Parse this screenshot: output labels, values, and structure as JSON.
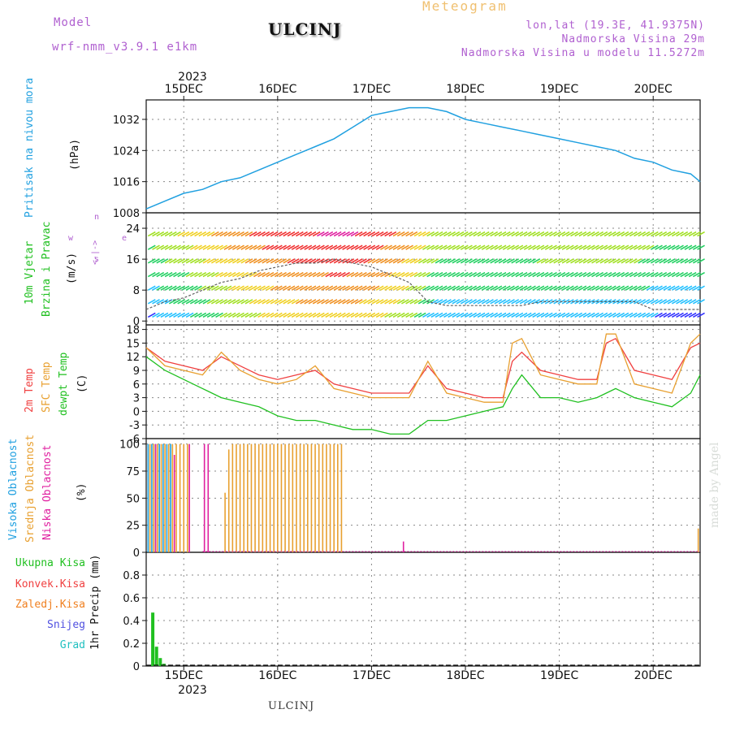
{
  "header": {
    "model_label": "Model",
    "model_name": "wrf-nmm_v3.9.1  e1km",
    "station": "ULCINJ",
    "chart_title": "Meteogram",
    "lonlat": "lon,lat (19.3E, 41.9375N)",
    "elevation": "Nadmorska Visina 29m",
    "model_elevation": "Nadmorska Visina u modelu 11.5272m"
  },
  "footer": {
    "station": "ULCINJ",
    "watermark": "made by Angel"
  },
  "time_axis": {
    "year": "2023",
    "days": [
      "15DEC",
      "16DEC",
      "17DEC",
      "18DEC",
      "19DEC",
      "20DEC"
    ],
    "day_positions": [
      15,
      16,
      17,
      18,
      19,
      20
    ],
    "range": [
      14.6,
      20.5
    ]
  },
  "colors": {
    "pressure": "#20a0e0",
    "temp2m": "#f04040",
    "sfc_temp": "#e8a030",
    "dewpt": "#20c020",
    "high_cloud": "#20a0e0",
    "mid_cloud": "#e8a030",
    "low_cloud": "#e020a0",
    "total_precip": "#20c020",
    "conv_precip": "#f04040",
    "frz_precip": "#f08020",
    "snow": "#5050e0",
    "hail": "#20c0c0",
    "wind_speed_line": "#606060"
  },
  "chart_data": [
    {
      "type": "line",
      "name": "pressure",
      "ylabel_main": "Pritisak na nivou mora",
      "ylabel_unit": "(hPa)",
      "ylim": [
        1008,
        1037
      ],
      "yticks": [
        1008,
        1016,
        1024,
        1032
      ],
      "grid": true,
      "x": [
        14.6,
        14.8,
        15.0,
        15.2,
        15.4,
        15.6,
        15.8,
        16.0,
        16.2,
        16.4,
        16.6,
        16.8,
        17.0,
        17.2,
        17.4,
        17.6,
        17.8,
        18.0,
        18.2,
        18.4,
        18.6,
        18.8,
        19.0,
        19.2,
        19.4,
        19.6,
        19.8,
        20.0,
        20.2,
        20.4,
        20.5
      ],
      "y": [
        1009,
        1011,
        1013,
        1014,
        1016,
        1017,
        1019,
        1021,
        1023,
        1025,
        1027,
        1030,
        1033,
        1034,
        1035,
        1035,
        1034,
        1032,
        1031,
        1030,
        1029,
        1028,
        1027,
        1026,
        1025,
        1024,
        1022,
        1021,
        1019,
        1018,
        1016
      ]
    },
    {
      "type": "line",
      "name": "wind",
      "ylabel_main": "10m Vjetar",
      "ylabel_sub": "Brzina i Pravac",
      "ylabel_unit": "(m/s)",
      "compass": {
        "w": "w",
        "e": "e",
        "s": "s",
        "n": "n",
        "arrow": "<-|->"
      },
      "ylim": [
        -1,
        28
      ],
      "yticks": [
        0,
        8,
        16,
        24
      ],
      "grid": true,
      "x": [
        14.6,
        14.8,
        15.0,
        15.2,
        15.4,
        15.6,
        15.8,
        16.0,
        16.2,
        16.4,
        16.6,
        16.8,
        17.0,
        17.2,
        17.4,
        17.6,
        17.8,
        18.0,
        18.2,
        18.4,
        18.6,
        18.8,
        19.0,
        19.2,
        19.4,
        19.6,
        19.8,
        20.0,
        20.2,
        20.4,
        20.5
      ],
      "y": [
        3,
        5,
        6,
        8,
        10,
        11,
        13,
        14,
        15,
        15,
        16,
        15,
        14,
        12,
        10,
        5,
        4,
        4,
        4,
        4,
        4,
        5,
        5,
        5,
        5,
        5,
        5,
        3,
        3,
        3,
        3
      ]
    },
    {
      "type": "line",
      "name": "temperature",
      "ylabel_main": "2m Temp",
      "ylabel_sub": "SFC Temp",
      "ylabel_sub2": "dewpt Temp",
      "ylabel_unit": "(C)",
      "ylim": [
        -6,
        19
      ],
      "yticks": [
        -6,
        -3,
        0,
        3,
        6,
        9,
        12,
        15,
        18
      ],
      "grid": true,
      "x": [
        14.6,
        14.8,
        15.0,
        15.2,
        15.4,
        15.6,
        15.8,
        16.0,
        16.2,
        16.4,
        16.6,
        16.8,
        17.0,
        17.2,
        17.4,
        17.6,
        17.8,
        18.0,
        18.2,
        18.4,
        18.5,
        18.6,
        18.8,
        19.0,
        19.2,
        19.4,
        19.5,
        19.6,
        19.8,
        20.0,
        20.2,
        20.4,
        20.5
      ],
      "series": [
        {
          "name": "2m Temp",
          "values": [
            14,
            11,
            10,
            9,
            12,
            10,
            8,
            7,
            8,
            9,
            6,
            5,
            4,
            4,
            4,
            10,
            5,
            4,
            3,
            3,
            11,
            13,
            9,
            8,
            7,
            7,
            15,
            16,
            9,
            8,
            7,
            14,
            15
          ]
        },
        {
          "name": "SFC Temp",
          "values": [
            14,
            10,
            9,
            8,
            13,
            9,
            7,
            6,
            7,
            10,
            5,
            4,
            3,
            3,
            3,
            11,
            4,
            3,
            2,
            2,
            15,
            16,
            8,
            7,
            6,
            6,
            17,
            17,
            6,
            5,
            4,
            15,
            17
          ]
        },
        {
          "name": "dewpt Temp",
          "values": [
            12,
            9,
            7,
            5,
            3,
            2,
            1,
            -1,
            -2,
            -2,
            -3,
            -4,
            -4,
            -5,
            -5,
            -2,
            -2,
            -1,
            0,
            1,
            5,
            8,
            3,
            3,
            2,
            3,
            4,
            5,
            3,
            2,
            1,
            4,
            8
          ]
        }
      ]
    },
    {
      "type": "bar",
      "name": "clouds",
      "ylabel_main": "Visoka Oblacnost",
      "ylabel_sub": "Srednja Oblacnost",
      "ylabel_sub2": "Niska Oblacnost",
      "ylabel_unit": "(%)",
      "ylim": [
        0,
        105
      ],
      "yticks": [
        0,
        25,
        50,
        75,
        100
      ],
      "grid": true,
      "series": [
        {
          "name": "Visoka Oblacnost",
          "x": [
            14.62,
            14.66,
            14.7,
            14.74,
            14.78,
            14.82,
            14.86
          ],
          "values": [
            100,
            100,
            100,
            100,
            100,
            100,
            100
          ]
        },
        {
          "name": "Srednja Oblacnost",
          "x": [
            14.64,
            14.68,
            14.72,
            14.76,
            14.8,
            14.84,
            14.88,
            14.92,
            14.96,
            15.0,
            15.04,
            15.44,
            15.48,
            15.52,
            15.56,
            15.6,
            15.64,
            15.68,
            15.72,
            15.76,
            15.8,
            15.84,
            15.88,
            15.92,
            15.96,
            16.0,
            16.04,
            16.08,
            16.12,
            16.16,
            16.2,
            16.24,
            16.28,
            16.32,
            16.36,
            16.4,
            16.44,
            16.48,
            16.52,
            16.56,
            16.6,
            16.64,
            16.68,
            20.48
          ],
          "values": [
            100,
            100,
            100,
            100,
            100,
            100,
            100,
            100,
            100,
            100,
            100,
            55,
            95,
            100,
            100,
            100,
            100,
            100,
            100,
            100,
            100,
            100,
            100,
            100,
            100,
            100,
            100,
            100,
            100,
            100,
            100,
            100,
            100,
            100,
            100,
            100,
            100,
            100,
            100,
            100,
            100,
            100,
            100,
            22
          ]
        },
        {
          "name": "Niska Oblacnost",
          "x": [
            14.7,
            14.9,
            15.06,
            15.22,
            15.26,
            17.34
          ],
          "values": [
            100,
            90,
            100,
            100,
            100,
            10
          ]
        }
      ]
    },
    {
      "type": "bar",
      "name": "precipitation",
      "legend": [
        "Ukupna Kisa",
        "Konvek.Kisa",
        "Zaledj.Kisa",
        "Snijeg",
        "Grad"
      ],
      "ylabel_unit": "1hr Precip (mm)",
      "ylim": [
        0,
        1.0
      ],
      "yticks": [
        0,
        0.2,
        0.4,
        0.6,
        0.8
      ],
      "grid": true,
      "x": [
        14.67,
        14.71,
        14.75,
        14.79
      ],
      "values": [
        0.47,
        0.17,
        0.07,
        0.02
      ]
    }
  ]
}
